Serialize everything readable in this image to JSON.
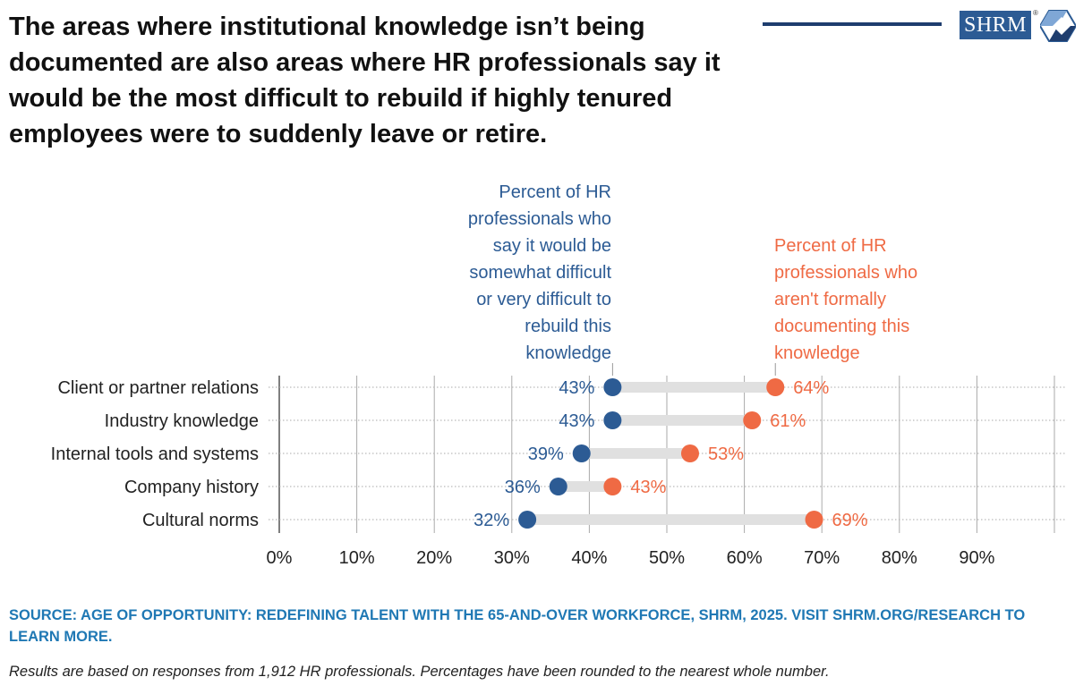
{
  "title": "The areas where institutional knowledge isn’t being documented are also areas where HR professionals say it would be the most difficult to rebuild if highly tenured employees were to suddenly leave or retire.",
  "logo": {
    "text": "SHRM",
    "registered": "®",
    "icon": "shrm-hexagon-icon"
  },
  "colors": {
    "blue": "#2c5b94",
    "orange": "#ef6a44",
    "navy": "#1e3d6e",
    "source": "#1f78b4",
    "connector": "#e0e0e0",
    "grid": "#aaaaaa"
  },
  "chart_data": {
    "type": "dot-range",
    "categories": [
      "Client or partner relations",
      "Industry knowledge",
      "Internal tools and systems",
      "Company history",
      "Cultural norms"
    ],
    "series": [
      {
        "name": "Percent of HR professionals who say it would be somewhat difficult or very difficult to rebuild this knowledge",
        "label_lines": [
          "Percent of HR",
          "professionals who",
          "say it would be",
          "somewhat difficult",
          "or very difficult to",
          "rebuild this",
          "knowledge"
        ],
        "color": "#2c5b94",
        "values": [
          43,
          43,
          39,
          36,
          32
        ]
      },
      {
        "name": "Percent of HR professionals who aren't formally documenting this knowledge",
        "label_lines": [
          "Percent of HR",
          "professionals who",
          "aren't formally",
          "documenting this",
          "knowledge"
        ],
        "color": "#ef6a44",
        "values": [
          64,
          61,
          53,
          43,
          69
        ]
      }
    ],
    "value_suffix": "%",
    "xlim": [
      0,
      100
    ],
    "xticks": [
      0,
      10,
      20,
      30,
      40,
      50,
      60,
      70,
      80,
      90
    ],
    "xtick_labels": [
      "0%",
      "10%",
      "20%",
      "30%",
      "40%",
      "50%",
      "60%",
      "70%",
      "80%",
      "90%"
    ],
    "grid": true
  },
  "source": "SOURCE: AGE OF OPPORTUNITY: REDEFINING TALENT WITH THE 65-AND-OVER WORKFORCE, SHRM, 2025. VISIT SHRM.ORG/RESEARCH TO LEARN MORE.",
  "note": "Results are based on responses from 1,912 HR professionals. Percentages have been rounded to the nearest whole number."
}
